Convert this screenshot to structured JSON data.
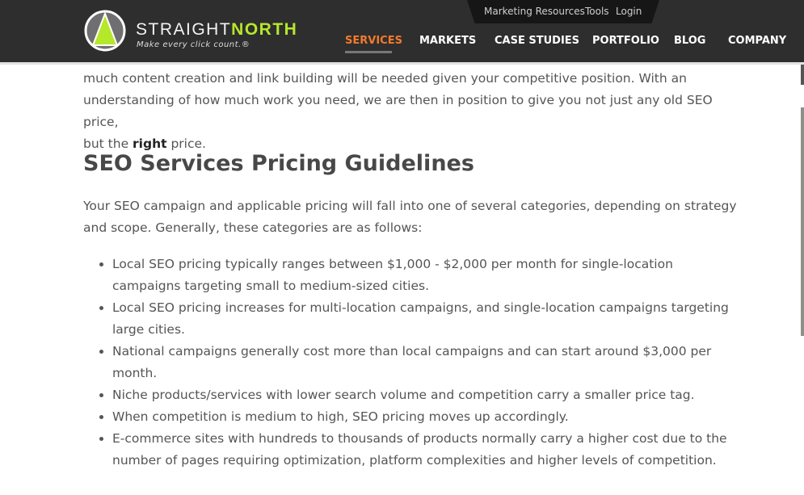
{
  "header": {
    "brand_left": "STRAIGHT",
    "brand_right": "NORTH",
    "tagline": "Make every click count.®",
    "utility_links": [
      "Marketing Resources",
      "Tools",
      "Login"
    ],
    "nav": [
      "SERVICES",
      "MARKETS",
      "CASE STUDIES",
      "PORTFOLIO",
      "BLOG",
      "COMPANY"
    ],
    "active_nav": "SERVICES",
    "colors": {
      "header_bg": "#2e2e2e",
      "accent": "#f37a2c",
      "brand_green": "#b5e82a"
    }
  },
  "content": {
    "intro_lines": [
      "much content creation and link building will be needed given your competitive position. With an",
      "understanding of how much work you need, we are then in position to give you not just any old SEO price,",
      "but the "
    ],
    "intro_bold": "right",
    "intro_end": " price.",
    "heading": "SEO Services Pricing Guidelines",
    "paragraph": "Your SEO campaign and applicable pricing will fall into one of several categories, depending on strategy and scope. Generally, these categories are as follows:",
    "bullets": [
      "Local SEO pricing typically ranges between $1,000 - $2,000 per month for single-location campaigns targeting small to medium-sized cities.",
      "Local SEO pricing increases for multi-location campaigns, and single-location campaigns targeting large cities.",
      "National campaigns generally cost more than local campaigns and can start around $3,000 per month.",
      "Niche products/services with lower search volume and competition carry a smaller price tag.",
      "When competition is medium to high, SEO pricing moves up accordingly.",
      "E-commerce sites with hundreds to thousands of products normally carry a higher cost due to the number of pages requiring optimization, platform complexities and higher levels of competition."
    ]
  }
}
